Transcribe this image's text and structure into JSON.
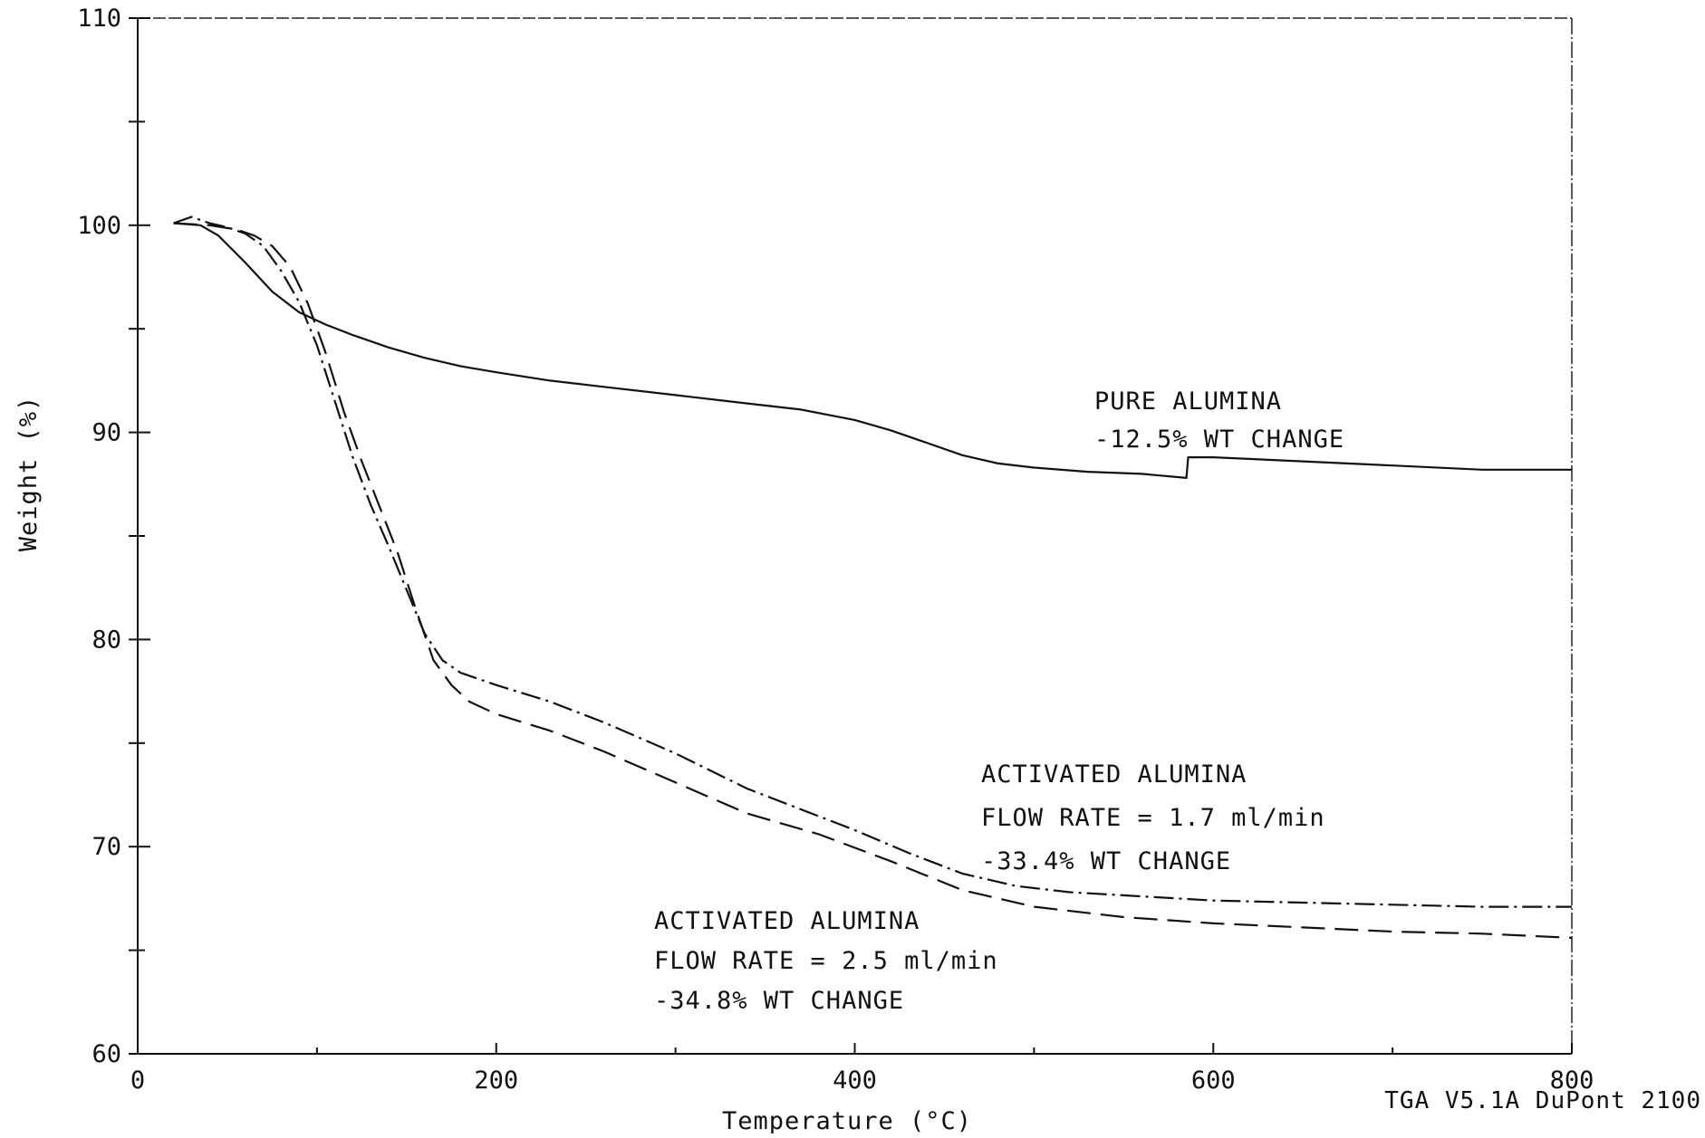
{
  "chart_data": {
    "type": "line",
    "xlabel": "Temperature (°C)",
    "ylabel": "Weight (%)",
    "xlim": [
      0,
      800
    ],
    "ylim": [
      60,
      110
    ],
    "x_ticks": [
      0,
      200,
      400,
      600,
      800
    ],
    "x_tick_labels": [
      "0",
      "200",
      "400",
      "600",
      "800"
    ],
    "y_ticks": [
      60,
      70,
      80,
      90,
      100,
      110
    ],
    "y_tick_labels": [
      "60",
      "70",
      "80",
      "90",
      "100",
      "110"
    ],
    "x_minor_step": 100,
    "y_minor_step": 5,
    "grid": false,
    "series": [
      {
        "key": "pure",
        "style": "solid",
        "color": "#111111",
        "points": [
          [
            20,
            100.1
          ],
          [
            35,
            100.0
          ],
          [
            45,
            99.5
          ],
          [
            60,
            98.2
          ],
          [
            75,
            96.8
          ],
          [
            90,
            95.8
          ],
          [
            105,
            95.2
          ],
          [
            120,
            94.7
          ],
          [
            140,
            94.1
          ],
          [
            160,
            93.6
          ],
          [
            180,
            93.2
          ],
          [
            200,
            92.9
          ],
          [
            230,
            92.5
          ],
          [
            260,
            92.2
          ],
          [
            300,
            91.8
          ],
          [
            340,
            91.4
          ],
          [
            370,
            91.1
          ],
          [
            400,
            90.6
          ],
          [
            420,
            90.1
          ],
          [
            440,
            89.5
          ],
          [
            460,
            88.9
          ],
          [
            480,
            88.5
          ],
          [
            500,
            88.3
          ],
          [
            530,
            88.1
          ],
          [
            560,
            88.0
          ],
          [
            585,
            87.8
          ],
          [
            586,
            88.8
          ],
          [
            600,
            88.8
          ],
          [
            650,
            88.6
          ],
          [
            700,
            88.4
          ],
          [
            750,
            88.2
          ],
          [
            800,
            88.2
          ]
        ]
      },
      {
        "key": "flow_1_7",
        "style": "dashdot",
        "color": "#111111",
        "points": [
          [
            20,
            100.1
          ],
          [
            30,
            100.4
          ],
          [
            40,
            100.1
          ],
          [
            50,
            99.9
          ],
          [
            60,
            99.6
          ],
          [
            70,
            99.0
          ],
          [
            80,
            97.8
          ],
          [
            90,
            96.3
          ],
          [
            100,
            94.2
          ],
          [
            110,
            91.5
          ],
          [
            120,
            88.8
          ],
          [
            130,
            86.5
          ],
          [
            140,
            84.5
          ],
          [
            150,
            82.4
          ],
          [
            160,
            80.3
          ],
          [
            170,
            79.0
          ],
          [
            180,
            78.4
          ],
          [
            200,
            77.8
          ],
          [
            230,
            77.0
          ],
          [
            260,
            76.0
          ],
          [
            300,
            74.5
          ],
          [
            340,
            72.8
          ],
          [
            370,
            71.8
          ],
          [
            400,
            70.8
          ],
          [
            430,
            69.7
          ],
          [
            460,
            68.7
          ],
          [
            490,
            68.1
          ],
          [
            520,
            67.8
          ],
          [
            560,
            67.6
          ],
          [
            600,
            67.4
          ],
          [
            650,
            67.3
          ],
          [
            700,
            67.2
          ],
          [
            750,
            67.1
          ],
          [
            800,
            67.1
          ]
        ]
      },
      {
        "key": "flow_2_5",
        "style": "dashed",
        "color": "#111111",
        "points": [
          [
            20,
            100.1
          ],
          [
            40,
            100.0
          ],
          [
            55,
            99.8
          ],
          [
            65,
            99.5
          ],
          [
            75,
            99.0
          ],
          [
            85,
            98.0
          ],
          [
            95,
            96.2
          ],
          [
            105,
            93.8
          ],
          [
            115,
            91.0
          ],
          [
            125,
            88.6
          ],
          [
            135,
            86.4
          ],
          [
            145,
            84.2
          ],
          [
            155,
            81.5
          ],
          [
            165,
            79.0
          ],
          [
            175,
            77.8
          ],
          [
            185,
            77.0
          ],
          [
            200,
            76.4
          ],
          [
            230,
            75.6
          ],
          [
            260,
            74.6
          ],
          [
            300,
            73.1
          ],
          [
            340,
            71.6
          ],
          [
            380,
            70.6
          ],
          [
            420,
            69.3
          ],
          [
            460,
            67.9
          ],
          [
            500,
            67.1
          ],
          [
            550,
            66.6
          ],
          [
            600,
            66.3
          ],
          [
            650,
            66.1
          ],
          [
            700,
            65.9
          ],
          [
            750,
            65.8
          ],
          [
            800,
            65.6
          ]
        ]
      }
    ],
    "annotations": [
      {
        "key": "pure",
        "lines": [
          "PURE ALUMINA",
          "-12.5% WT CHANGE"
        ]
      },
      {
        "key": "flow_1_7",
        "lines": [
          "ACTIVATED ALUMINA",
          "FLOW RATE = 1.7 ml/min",
          "-33.4% WT CHANGE"
        ]
      },
      {
        "key": "flow_2_5",
        "lines": [
          "ACTIVATED ALUMINA",
          "FLOW RATE = 2.5 ml/min",
          "-34.8% WT CHANGE"
        ]
      }
    ],
    "footer": "TGA V5.1A DuPont 2100"
  }
}
